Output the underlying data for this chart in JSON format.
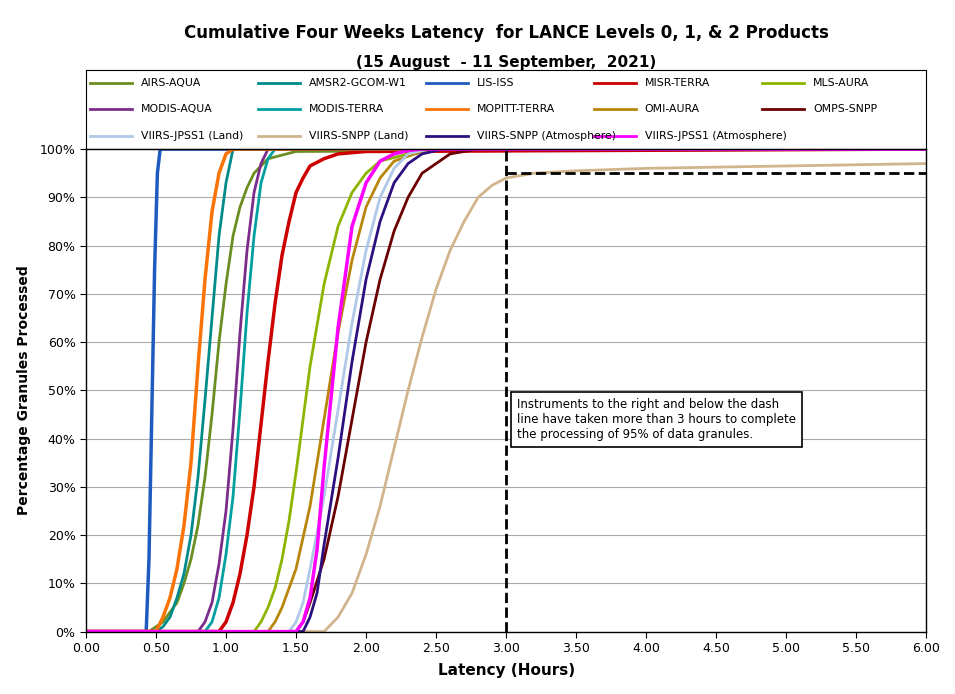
{
  "title_line1": "Cumulative Four Weeks Latency  for LANCE Levels 0, 1, & 2 Products",
  "title_line2": "(15 August  - 11 September,  2021)",
  "xlabel": "Latency (Hours)",
  "ylabel": "Percentage Granules Processed",
  "xlim": [
    0.0,
    6.0
  ],
  "ylim": [
    0.0,
    1.0
  ],
  "xticks": [
    0.0,
    0.5,
    1.0,
    1.5,
    2.0,
    2.5,
    3.0,
    3.5,
    4.0,
    4.5,
    5.0,
    5.5,
    6.0
  ],
  "yticks": [
    0.0,
    0.1,
    0.2,
    0.3,
    0.4,
    0.5,
    0.6,
    0.7,
    0.8,
    0.9,
    1.0
  ],
  "annotation_text": "Instruments to the right and below the dash\nline have taken more than 3 hours to complete\nthe processing of 95% of data granules.",
  "vline_x": 3.0,
  "hline_y": 0.95,
  "series": [
    {
      "label": "AIRS-AQUA",
      "color": "#6b8e23",
      "lw": 2.0,
      "x": [
        0.0,
        0.45,
        0.5,
        0.55,
        0.6,
        0.65,
        0.7,
        0.75,
        0.8,
        0.85,
        0.9,
        0.95,
        1.0,
        1.05,
        1.1,
        1.15,
        1.2,
        1.3,
        1.5,
        6.0
      ],
      "y": [
        0.0,
        0.0,
        0.01,
        0.02,
        0.04,
        0.06,
        0.1,
        0.15,
        0.22,
        0.32,
        0.45,
        0.6,
        0.72,
        0.82,
        0.88,
        0.92,
        0.95,
        0.98,
        0.995,
        1.0
      ]
    },
    {
      "label": "AMSR2-GCOM-W1",
      "color": "#008B8B",
      "lw": 2.0,
      "x": [
        0.0,
        0.5,
        0.55,
        0.6,
        0.65,
        0.7,
        0.75,
        0.8,
        0.85,
        0.9,
        0.95,
        1.0,
        1.05,
        6.0
      ],
      "y": [
        0.0,
        0.0,
        0.01,
        0.03,
        0.07,
        0.12,
        0.2,
        0.32,
        0.48,
        0.65,
        0.82,
        0.93,
        1.0,
        1.0
      ]
    },
    {
      "label": "LIS-ISS",
      "color": "#1f5bbf",
      "lw": 2.5,
      "x": [
        0.0,
        0.43,
        0.45,
        0.47,
        0.49,
        0.51,
        0.53,
        6.0
      ],
      "y": [
        0.0,
        0.0,
        0.15,
        0.45,
        0.75,
        0.95,
        1.0,
        1.0
      ]
    },
    {
      "label": "MISR-TERRA",
      "color": "#cc0000",
      "lw": 2.5,
      "x": [
        0.0,
        0.95,
        1.0,
        1.05,
        1.1,
        1.15,
        1.2,
        1.25,
        1.3,
        1.35,
        1.4,
        1.45,
        1.5,
        1.55,
        1.6,
        1.7,
        1.8,
        2.0,
        6.0
      ],
      "y": [
        0.0,
        0.0,
        0.02,
        0.06,
        0.12,
        0.2,
        0.3,
        0.43,
        0.56,
        0.68,
        0.78,
        0.85,
        0.91,
        0.94,
        0.965,
        0.98,
        0.99,
        0.995,
        1.0
      ]
    },
    {
      "label": "MLS-AURA",
      "color": "#8db500",
      "lw": 2.0,
      "x": [
        0.0,
        1.2,
        1.25,
        1.3,
        1.35,
        1.4,
        1.45,
        1.5,
        1.55,
        1.6,
        1.7,
        1.8,
        1.9,
        2.0,
        2.1,
        2.3,
        2.5,
        6.0
      ],
      "y": [
        0.0,
        0.0,
        0.02,
        0.05,
        0.09,
        0.15,
        0.23,
        0.33,
        0.44,
        0.55,
        0.72,
        0.84,
        0.91,
        0.95,
        0.975,
        0.99,
        1.0,
        1.0
      ]
    },
    {
      "label": "MODIS-AQUA",
      "color": "#7b2d8b",
      "lw": 2.0,
      "x": [
        0.0,
        0.8,
        0.85,
        0.9,
        0.95,
        1.0,
        1.05,
        1.1,
        1.15,
        1.2,
        1.25,
        1.3,
        6.0
      ],
      "y": [
        0.0,
        0.0,
        0.02,
        0.06,
        0.14,
        0.25,
        0.42,
        0.62,
        0.79,
        0.91,
        0.97,
        1.0,
        1.0
      ]
    },
    {
      "label": "MODIS-TERRA",
      "color": "#00a0a0",
      "lw": 2.0,
      "x": [
        0.0,
        0.85,
        0.9,
        0.95,
        1.0,
        1.05,
        1.1,
        1.15,
        1.2,
        1.25,
        1.3,
        1.35,
        6.0
      ],
      "y": [
        0.0,
        0.0,
        0.02,
        0.07,
        0.16,
        0.28,
        0.46,
        0.66,
        0.82,
        0.93,
        0.98,
        1.0,
        1.0
      ]
    },
    {
      "label": "MOPITT-TERRA",
      "color": "#f97306",
      "lw": 2.5,
      "x": [
        0.0,
        0.5,
        0.55,
        0.6,
        0.65,
        0.7,
        0.75,
        0.8,
        0.85,
        0.9,
        0.95,
        1.0,
        1.05,
        6.0
      ],
      "y": [
        0.0,
        0.0,
        0.03,
        0.07,
        0.13,
        0.22,
        0.35,
        0.55,
        0.73,
        0.87,
        0.95,
        0.99,
        1.0,
        1.0
      ]
    },
    {
      "label": "OMI-AURA",
      "color": "#b8860b",
      "lw": 2.0,
      "x": [
        0.0,
        1.3,
        1.35,
        1.4,
        1.5,
        1.6,
        1.7,
        1.8,
        1.9,
        2.0,
        2.1,
        2.2,
        2.35,
        2.5,
        6.0
      ],
      "y": [
        0.0,
        0.0,
        0.02,
        0.05,
        0.13,
        0.26,
        0.44,
        0.62,
        0.77,
        0.88,
        0.94,
        0.975,
        0.99,
        1.0,
        1.0
      ]
    },
    {
      "label": "OMPS-SNPP",
      "color": "#6b0000",
      "lw": 2.0,
      "x": [
        0.0,
        1.5,
        1.55,
        1.6,
        1.7,
        1.8,
        1.9,
        2.0,
        2.1,
        2.2,
        2.3,
        2.4,
        2.6,
        2.8,
        6.0
      ],
      "y": [
        0.0,
        0.0,
        0.02,
        0.06,
        0.15,
        0.28,
        0.44,
        0.6,
        0.73,
        0.83,
        0.9,
        0.95,
        0.99,
        1.0,
        1.0
      ]
    },
    {
      "label": "VIIRS-JPSS1 (Land)",
      "color": "#b0c8e8",
      "lw": 2.0,
      "x": [
        0.0,
        1.45,
        1.5,
        1.55,
        1.6,
        1.7,
        1.8,
        1.9,
        2.0,
        2.1,
        2.2,
        2.3,
        2.45,
        6.0
      ],
      "y": [
        0.0,
        0.0,
        0.02,
        0.06,
        0.13,
        0.28,
        0.46,
        0.64,
        0.79,
        0.9,
        0.96,
        0.99,
        1.0,
        1.0
      ]
    },
    {
      "label": "VIIRS-SNPP (Land)",
      "color": "#d2b48c",
      "lw": 2.0,
      "x": [
        0.0,
        1.7,
        1.8,
        1.9,
        2.0,
        2.1,
        2.2,
        2.3,
        2.4,
        2.5,
        2.6,
        2.7,
        2.8,
        2.9,
        3.0,
        3.2,
        3.5,
        4.0,
        5.0,
        6.0
      ],
      "y": [
        0.0,
        0.0,
        0.03,
        0.08,
        0.16,
        0.26,
        0.38,
        0.5,
        0.61,
        0.71,
        0.79,
        0.85,
        0.9,
        0.925,
        0.94,
        0.95,
        0.955,
        0.96,
        0.965,
        0.97
      ]
    },
    {
      "label": "VIIRS-SNPP (Atmosphere)",
      "color": "#2d1080",
      "lw": 2.0,
      "x": [
        0.0,
        1.55,
        1.6,
        1.65,
        1.7,
        1.8,
        1.9,
        2.0,
        2.1,
        2.2,
        2.3,
        2.4,
        2.55,
        6.0
      ],
      "y": [
        0.0,
        0.0,
        0.03,
        0.08,
        0.18,
        0.36,
        0.56,
        0.73,
        0.85,
        0.93,
        0.97,
        0.99,
        1.0,
        1.0
      ]
    },
    {
      "label": "VIIRS-JPSS1 (Atmosphere)",
      "color": "#ff00ff",
      "lw": 2.5,
      "x": [
        0.0,
        1.5,
        1.55,
        1.6,
        1.65,
        1.7,
        1.8,
        1.9,
        2.0,
        2.1,
        2.2,
        2.3,
        2.4,
        6.0
      ],
      "y": [
        0.0,
        0.0,
        0.02,
        0.07,
        0.17,
        0.34,
        0.63,
        0.84,
        0.93,
        0.975,
        0.99,
        0.997,
        1.0,
        1.0
      ]
    }
  ],
  "legend_rows": [
    [
      "AIRS-AQUA",
      "AMSR2-GCOM-W1",
      "LIS-ISS",
      "MISR-TERRA",
      "MLS-AURA"
    ],
    [
      "MODIS-AQUA",
      "MODIS-TERRA",
      "MOPITT-TERRA",
      "OMI-AURA",
      "OMPS-SNPP"
    ],
    [
      "VIIRS-JPSS1 (Land)",
      "VIIRS-SNPP (Land)",
      "VIIRS-SNPP (Atmosphere)",
      "VIIRS-JPSS1 (Atmosphere)"
    ]
  ]
}
